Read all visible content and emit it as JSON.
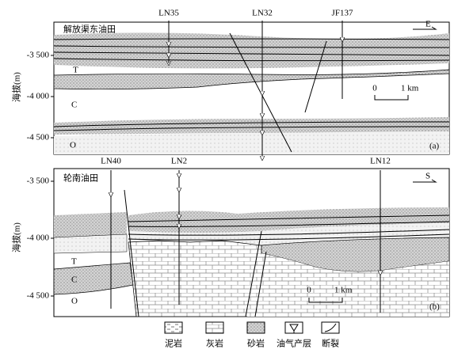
{
  "panels": [
    {
      "field": "解放渠东油田",
      "direction": "E",
      "axis_label": "海拔(m)",
      "ticks": [
        "-3 500",
        "-4 000",
        "-4 500"
      ],
      "wells": [
        "LN35",
        "LN32",
        "JF137"
      ],
      "layers": [
        "T",
        "C",
        "O"
      ],
      "scale": [
        "0",
        "1 km"
      ],
      "label": "(a)"
    },
    {
      "field": "轮南油田",
      "direction": "S",
      "axis_label": "海拔(m)",
      "ticks": [
        "-3 500",
        "-4 000",
        "-4 500"
      ],
      "wells": [
        "LN40",
        "LN2",
        "LN12"
      ],
      "layers": [
        "T",
        "C",
        "O"
      ],
      "scale": [
        "0",
        "1 km"
      ],
      "label": "(b)"
    }
  ],
  "legend": [
    "泥岩",
    "灰岩",
    "砂岩",
    "油气产层",
    "断裂"
  ]
}
